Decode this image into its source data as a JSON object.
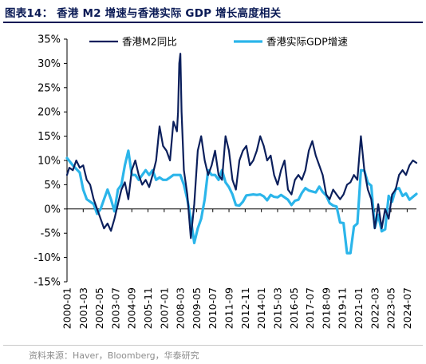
{
  "title": "图表14：  香港 M2 增速与香港实际 GDP 增长高度相关",
  "source": "资料来源：Haver，Bloomberg，华泰研究",
  "colors": {
    "series1": "#0b1f5c",
    "series2": "#2bb5ea",
    "title": "#0a1a55",
    "axis": "#000000"
  },
  "chart_data": {
    "type": "line",
    "title": "香港 M2 增速与香港实际 GDP 增长高度相关",
    "xlabel": "",
    "ylabel": "",
    "ylim": [
      -0.15,
      0.35
    ],
    "xlim": [
      "2000-01",
      "2025-03"
    ],
    "grid": false,
    "legend_position": "top",
    "y_ticks": [
      "-15%",
      "-10%",
      "-5%",
      "0%",
      "5%",
      "10%",
      "15%",
      "20%",
      "25%",
      "30%",
      "35%"
    ],
    "x_ticks": [
      "2000-01",
      "2001-03",
      "2002-05",
      "2003-07",
      "2004-09",
      "2005-11",
      "2007-01",
      "2008-03",
      "2009-05",
      "2010-07",
      "2011-09",
      "2012-11",
      "2014-01",
      "2015-03",
      "2016-05",
      "2017-07",
      "2018-09",
      "2019-11",
      "2021-01",
      "2022-03",
      "2023-05",
      "2024-07"
    ],
    "series": [
      {
        "name": "香港M2同比",
        "points": [
          [
            "2000-01",
            0.07
          ],
          [
            "2000-03",
            0.085
          ],
          [
            "2000-06",
            0.08
          ],
          [
            "2000-09",
            0.1
          ],
          [
            "2000-12",
            0.085
          ],
          [
            "2001-03",
            0.09
          ],
          [
            "2001-06",
            0.06
          ],
          [
            "2001-09",
            0.05
          ],
          [
            "2001-12",
            0.02
          ],
          [
            "2002-03",
            0.0
          ],
          [
            "2002-06",
            -0.02
          ],
          [
            "2002-09",
            -0.04
          ],
          [
            "2002-12",
            -0.03
          ],
          [
            "2003-03",
            -0.045
          ],
          [
            "2003-06",
            -0.02
          ],
          [
            "2003-09",
            0.01
          ],
          [
            "2003-12",
            0.04
          ],
          [
            "2004-03",
            0.055
          ],
          [
            "2004-06",
            0.02
          ],
          [
            "2004-09",
            0.08
          ],
          [
            "2004-12",
            0.1
          ],
          [
            "2005-03",
            0.07
          ],
          [
            "2005-06",
            0.05
          ],
          [
            "2005-09",
            0.06
          ],
          [
            "2005-12",
            0.045
          ],
          [
            "2006-03",
            0.07
          ],
          [
            "2006-06",
            0.1
          ],
          [
            "2006-09",
            0.17
          ],
          [
            "2006-12",
            0.13
          ],
          [
            "2007-03",
            0.12
          ],
          [
            "2007-06",
            0.1
          ],
          [
            "2007-09",
            0.18
          ],
          [
            "2007-12",
            0.16
          ],
          [
            "2008-01",
            0.2
          ],
          [
            "2008-02",
            0.3
          ],
          [
            "2008-03",
            0.32
          ],
          [
            "2008-04",
            0.2
          ],
          [
            "2008-06",
            0.08
          ],
          [
            "2008-09",
            0.03
          ],
          [
            "2008-12",
            -0.06
          ],
          [
            "2009-03",
            0.01
          ],
          [
            "2009-06",
            0.12
          ],
          [
            "2009-09",
            0.15
          ],
          [
            "2009-12",
            0.1
          ],
          [
            "2010-03",
            0.07
          ],
          [
            "2010-06",
            0.09
          ],
          [
            "2010-09",
            0.12
          ],
          [
            "2010-12",
            0.07
          ],
          [
            "2011-03",
            0.06
          ],
          [
            "2011-06",
            0.15
          ],
          [
            "2011-09",
            0.12
          ],
          [
            "2011-12",
            0.06
          ],
          [
            "2012-03",
            0.04
          ],
          [
            "2012-06",
            0.1
          ],
          [
            "2012-09",
            0.12
          ],
          [
            "2012-12",
            0.13
          ],
          [
            "2013-03",
            0.09
          ],
          [
            "2013-06",
            0.1
          ],
          [
            "2013-09",
            0.12
          ],
          [
            "2013-12",
            0.15
          ],
          [
            "2014-03",
            0.13
          ],
          [
            "2014-06",
            0.1
          ],
          [
            "2014-09",
            0.11
          ],
          [
            "2014-12",
            0.07
          ],
          [
            "2015-03",
            0.05
          ],
          [
            "2015-06",
            0.08
          ],
          [
            "2015-09",
            0.1
          ],
          [
            "2015-12",
            0.04
          ],
          [
            "2016-03",
            0.03
          ],
          [
            "2016-06",
            0.06
          ],
          [
            "2016-09",
            0.07
          ],
          [
            "2016-12",
            0.06
          ],
          [
            "2017-03",
            0.08
          ],
          [
            "2017-06",
            0.12
          ],
          [
            "2017-09",
            0.14
          ],
          [
            "2017-12",
            0.11
          ],
          [
            "2018-03",
            0.09
          ],
          [
            "2018-06",
            0.07
          ],
          [
            "2018-09",
            0.03
          ],
          [
            "2018-12",
            0.02
          ],
          [
            "2019-03",
            0.04
          ],
          [
            "2019-06",
            0.03
          ],
          [
            "2019-09",
            0.02
          ],
          [
            "2019-12",
            0.03
          ],
          [
            "2020-03",
            0.05
          ],
          [
            "2020-06",
            0.055
          ],
          [
            "2020-09",
            0.07
          ],
          [
            "2020-12",
            0.06
          ],
          [
            "2021-03",
            0.15
          ],
          [
            "2021-06",
            0.08
          ],
          [
            "2021-09",
            0.04
          ],
          [
            "2021-12",
            0.02
          ],
          [
            "2022-03",
            -0.04
          ],
          [
            "2022-06",
            0.01
          ],
          [
            "2022-09",
            -0.04
          ],
          [
            "2022-12",
            0.0
          ],
          [
            "2023-03",
            -0.02
          ],
          [
            "2023-06",
            0.03
          ],
          [
            "2023-09",
            0.04
          ],
          [
            "2023-12",
            0.07
          ],
          [
            "2024-03",
            0.08
          ],
          [
            "2024-06",
            0.07
          ],
          [
            "2024-09",
            0.09
          ],
          [
            "2024-12",
            0.1
          ],
          [
            "2025-03",
            0.095
          ]
        ]
      },
      {
        "name": "香港实际GDP增速",
        "points": [
          [
            "2000-01",
            0.105
          ],
          [
            "2000-06",
            0.09
          ],
          [
            "2000-12",
            0.075
          ],
          [
            "2001-03",
            0.04
          ],
          [
            "2001-06",
            0.02
          ],
          [
            "2001-12",
            0.01
          ],
          [
            "2002-03",
            -0.01
          ],
          [
            "2002-06",
            0.0
          ],
          [
            "2002-09",
            0.02
          ],
          [
            "2002-12",
            0.04
          ],
          [
            "2003-03",
            0.02
          ],
          [
            "2003-06",
            -0.005
          ],
          [
            "2003-09",
            0.04
          ],
          [
            "2003-12",
            0.05
          ],
          [
            "2004-03",
            0.09
          ],
          [
            "2004-06",
            0.12
          ],
          [
            "2004-09",
            0.07
          ],
          [
            "2004-12",
            0.07
          ],
          [
            "2005-03",
            0.06
          ],
          [
            "2005-06",
            0.07
          ],
          [
            "2005-09",
            0.08
          ],
          [
            "2005-12",
            0.07
          ],
          [
            "2006-03",
            0.08
          ],
          [
            "2006-06",
            0.06
          ],
          [
            "2006-09",
            0.065
          ],
          [
            "2006-12",
            0.06
          ],
          [
            "2007-03",
            0.06
          ],
          [
            "2007-06",
            0.065
          ],
          [
            "2007-09",
            0.07
          ],
          [
            "2007-12",
            0.07
          ],
          [
            "2008-03",
            0.07
          ],
          [
            "2008-06",
            0.05
          ],
          [
            "2008-09",
            0.02
          ],
          [
            "2008-12",
            -0.02
          ],
          [
            "2009-03",
            -0.07
          ],
          [
            "2009-06",
            -0.04
          ],
          [
            "2009-09",
            -0.02
          ],
          [
            "2009-12",
            0.02
          ],
          [
            "2010-03",
            0.08
          ],
          [
            "2010-06",
            0.07
          ],
          [
            "2010-09",
            0.07
          ],
          [
            "2010-12",
            0.06
          ],
          [
            "2011-03",
            0.08
          ],
          [
            "2011-06",
            0.055
          ],
          [
            "2011-09",
            0.045
          ],
          [
            "2011-12",
            0.03
          ],
          [
            "2012-03",
            0.008
          ],
          [
            "2012-06",
            0.007
          ],
          [
            "2012-09",
            0.015
          ],
          [
            "2012-12",
            0.028
          ],
          [
            "2013-03",
            0.029
          ],
          [
            "2013-06",
            0.03
          ],
          [
            "2013-09",
            0.029
          ],
          [
            "2013-12",
            0.03
          ],
          [
            "2014-03",
            0.026
          ],
          [
            "2014-06",
            0.018
          ],
          [
            "2014-09",
            0.029
          ],
          [
            "2014-12",
            0.025
          ],
          [
            "2015-03",
            0.024
          ],
          [
            "2015-06",
            0.029
          ],
          [
            "2015-09",
            0.024
          ],
          [
            "2015-12",
            0.019
          ],
          [
            "2016-03",
            0.008
          ],
          [
            "2016-06",
            0.017
          ],
          [
            "2016-09",
            0.019
          ],
          [
            "2016-12",
            0.033
          ],
          [
            "2017-03",
            0.043
          ],
          [
            "2017-06",
            0.038
          ],
          [
            "2017-09",
            0.036
          ],
          [
            "2017-12",
            0.034
          ],
          [
            "2018-03",
            0.046
          ],
          [
            "2018-06",
            0.035
          ],
          [
            "2018-09",
            0.028
          ],
          [
            "2018-12",
            0.012
          ],
          [
            "2019-03",
            0.007
          ],
          [
            "2019-06",
            0.005
          ],
          [
            "2019-09",
            -0.028
          ],
          [
            "2019-12",
            -0.029
          ],
          [
            "2020-03",
            -0.091
          ],
          [
            "2020-06",
            -0.091
          ],
          [
            "2020-09",
            -0.036
          ],
          [
            "2020-12",
            -0.03
          ],
          [
            "2021-03",
            0.08
          ],
          [
            "2021-06",
            0.079
          ],
          [
            "2021-09",
            0.054
          ],
          [
            "2021-12",
            0.048
          ],
          [
            "2022-03",
            -0.039
          ],
          [
            "2022-06",
            -0.012
          ],
          [
            "2022-09",
            -0.046
          ],
          [
            "2022-12",
            -0.042
          ],
          [
            "2023-03",
            0.027
          ],
          [
            "2023-06",
            0.015
          ],
          [
            "2023-09",
            0.041
          ],
          [
            "2023-12",
            0.043
          ],
          [
            "2024-03",
            0.027
          ],
          [
            "2024-06",
            0.032
          ],
          [
            "2024-09",
            0.019
          ],
          [
            "2024-12",
            0.025
          ],
          [
            "2025-03",
            0.031
          ]
        ]
      }
    ]
  }
}
